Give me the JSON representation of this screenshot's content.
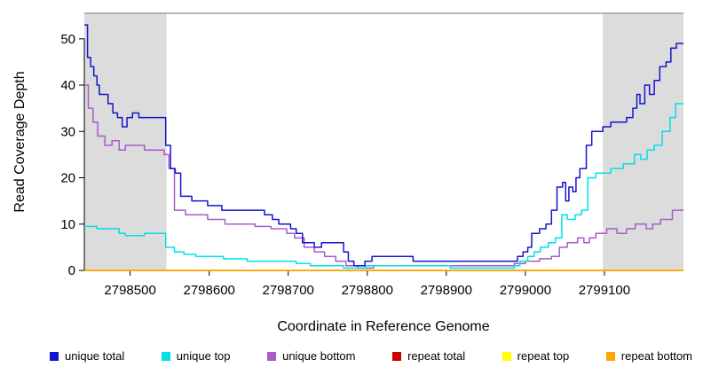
{
  "chart_data": {
    "type": "line",
    "step": true,
    "title": "",
    "xlabel": "Coordinate in Reference Genome",
    "ylabel": "Read Coverage Depth",
    "xlim": [
      2798442,
      2799200
    ],
    "ylim": [
      0,
      55.7
    ],
    "x_ticks": [
      2798500,
      2798600,
      2798700,
      2798800,
      2798900,
      2799000,
      2799100
    ],
    "y_ticks": [
      0,
      10,
      20,
      30,
      40,
      50
    ],
    "grid": false,
    "legend_position": "bottom",
    "shaded_regions": [
      {
        "x0": 2798442,
        "x1": 2798546,
        "color": "#DCDCDC"
      },
      {
        "x0": 2799098,
        "x1": 2799200,
        "color": "#DCDCDC"
      }
    ],
    "top_rule": {
      "y": 55.5,
      "color": "#A3A3A3"
    },
    "draw_order": [
      3,
      4,
      5,
      2,
      1,
      0
    ],
    "series": [
      {
        "name": "unique total",
        "color": "#1414CE",
        "points": [
          [
            2798442,
            53
          ],
          [
            2798446,
            46
          ],
          [
            2798450,
            44
          ],
          [
            2798454,
            42
          ],
          [
            2798458,
            40
          ],
          [
            2798461,
            38
          ],
          [
            2798472,
            36
          ],
          [
            2798478,
            34
          ],
          [
            2798484,
            33
          ],
          [
            2798490,
            31
          ],
          [
            2798496,
            33
          ],
          [
            2798503,
            34
          ],
          [
            2798511,
            33
          ],
          [
            2798545,
            27
          ],
          [
            2798551,
            22
          ],
          [
            2798557,
            21
          ],
          [
            2798564,
            16
          ],
          [
            2798578,
            15
          ],
          [
            2798598,
            14
          ],
          [
            2798616,
            13
          ],
          [
            2798670,
            12
          ],
          [
            2798680,
            11
          ],
          [
            2798688,
            10
          ],
          [
            2798703,
            9
          ],
          [
            2798710,
            8
          ],
          [
            2798718,
            6
          ],
          [
            2798733,
            5
          ],
          [
            2798742,
            6
          ],
          [
            2798770,
            4
          ],
          [
            2798776,
            2
          ],
          [
            2798783,
            1
          ],
          [
            2798797,
            2
          ],
          [
            2798806,
            3
          ],
          [
            2798858,
            2
          ],
          [
            2798990,
            3
          ],
          [
            2798997,
            4
          ],
          [
            2799003,
            5
          ],
          [
            2799008,
            8
          ],
          [
            2799018,
            9
          ],
          [
            2799026,
            10
          ],
          [
            2799033,
            13
          ],
          [
            2799040,
            18
          ],
          [
            2799047,
            19
          ],
          [
            2799051,
            15
          ],
          [
            2799055,
            18
          ],
          [
            2799060,
            17
          ],
          [
            2799064,
            20
          ],
          [
            2799069,
            22
          ],
          [
            2799077,
            27
          ],
          [
            2799084,
            30
          ],
          [
            2799098,
            31
          ],
          [
            2799108,
            32
          ],
          [
            2799128,
            33
          ],
          [
            2799136,
            35
          ],
          [
            2799141,
            38
          ],
          [
            2799145,
            36
          ],
          [
            2799151,
            40
          ],
          [
            2799157,
            38
          ],
          [
            2799163,
            41
          ],
          [
            2799170,
            44
          ],
          [
            2799178,
            45
          ],
          [
            2799184,
            48
          ],
          [
            2799191,
            49
          ]
        ]
      },
      {
        "name": "unique top",
        "color": "#00E0E6",
        "points": [
          [
            2798442,
            9.5
          ],
          [
            2798458,
            9
          ],
          [
            2798486,
            8
          ],
          [
            2798494,
            7.5
          ],
          [
            2798518,
            8
          ],
          [
            2798545,
            5
          ],
          [
            2798556,
            4
          ],
          [
            2798568,
            3.5
          ],
          [
            2798583,
            3
          ],
          [
            2798618,
            2.5
          ],
          [
            2798648,
            2
          ],
          [
            2798710,
            1.5
          ],
          [
            2798728,
            1
          ],
          [
            2798770,
            0.5
          ],
          [
            2798798,
            1
          ],
          [
            2798905,
            0.5
          ],
          [
            2798986,
            1
          ],
          [
            2798993,
            2
          ],
          [
            2799003,
            3
          ],
          [
            2799011,
            4
          ],
          [
            2799019,
            5
          ],
          [
            2799029,
            6
          ],
          [
            2799038,
            7
          ],
          [
            2799046,
            12
          ],
          [
            2799053,
            11
          ],
          [
            2799063,
            12
          ],
          [
            2799071,
            13
          ],
          [
            2799079,
            20
          ],
          [
            2799089,
            21
          ],
          [
            2799108,
            22
          ],
          [
            2799124,
            23
          ],
          [
            2799138,
            25
          ],
          [
            2799146,
            24
          ],
          [
            2799154,
            26
          ],
          [
            2799163,
            27
          ],
          [
            2799173,
            30
          ],
          [
            2799183,
            33
          ],
          [
            2799190,
            36
          ]
        ]
      },
      {
        "name": "unique bottom",
        "color": "#A85BC9",
        "points": [
          [
            2798442,
            40
          ],
          [
            2798447,
            35
          ],
          [
            2798453,
            32
          ],
          [
            2798459,
            29
          ],
          [
            2798468,
            27
          ],
          [
            2798477,
            28
          ],
          [
            2798486,
            26
          ],
          [
            2798494,
            27
          ],
          [
            2798518,
            26
          ],
          [
            2798543,
            25
          ],
          [
            2798549,
            22
          ],
          [
            2798556,
            13
          ],
          [
            2798570,
            12
          ],
          [
            2798598,
            11
          ],
          [
            2798620,
            10
          ],
          [
            2798658,
            9.5
          ],
          [
            2798678,
            9
          ],
          [
            2798698,
            8
          ],
          [
            2798708,
            7
          ],
          [
            2798720,
            5
          ],
          [
            2798733,
            4
          ],
          [
            2798746,
            3
          ],
          [
            2798760,
            2
          ],
          [
            2798773,
            1
          ],
          [
            2798788,
            0.5
          ],
          [
            2798808,
            1
          ],
          [
            2798986,
            1.5
          ],
          [
            2799000,
            2
          ],
          [
            2799018,
            2.5
          ],
          [
            2799033,
            3
          ],
          [
            2799043,
            5
          ],
          [
            2799053,
            6
          ],
          [
            2799066,
            7
          ],
          [
            2799074,
            6
          ],
          [
            2799081,
            7
          ],
          [
            2799089,
            8
          ],
          [
            2799103,
            9
          ],
          [
            2799116,
            8
          ],
          [
            2799128,
            9
          ],
          [
            2799139,
            10
          ],
          [
            2799153,
            9
          ],
          [
            2799161,
            10
          ],
          [
            2799171,
            11
          ],
          [
            2799186,
            13
          ]
        ]
      },
      {
        "name": "repeat total",
        "color": "#CC0000",
        "points": [
          [
            2798442,
            0
          ],
          [
            2799195,
            0
          ]
        ]
      },
      {
        "name": "repeat top",
        "color": "#FFFF00",
        "points": [
          [
            2798442,
            0
          ],
          [
            2799195,
            0
          ]
        ]
      },
      {
        "name": "repeat bottom",
        "color": "#FFA500",
        "points": [
          [
            2798442,
            0
          ],
          [
            2799195,
            0
          ]
        ]
      }
    ]
  }
}
